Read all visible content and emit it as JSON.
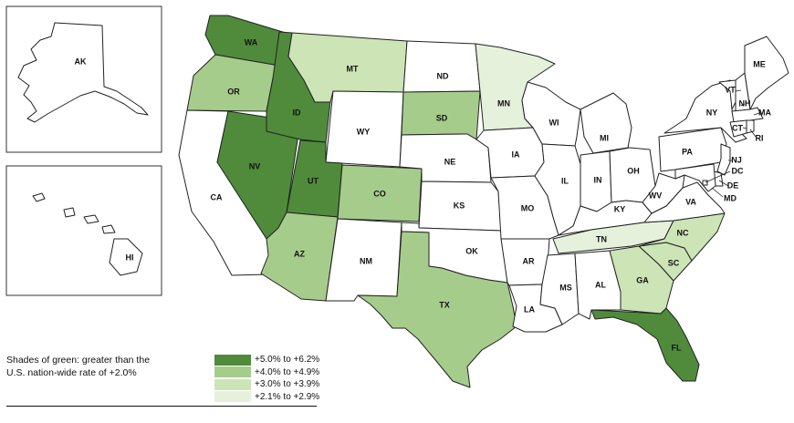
{
  "colors": {
    "tier1": "#4f8b3b",
    "tier2": "#a6cc8b",
    "tier3": "#cce4b6",
    "tier4": "#e6f1dc",
    "none": "#ffffff"
  },
  "states": {
    "AK": {
      "label": "AK",
      "tier": "none"
    },
    "HI": {
      "label": "HI",
      "tier": "none"
    },
    "WA": {
      "label": "WA",
      "tier": "tier1"
    },
    "OR": {
      "label": "OR",
      "tier": "tier2"
    },
    "CA": {
      "label": "CA",
      "tier": "none"
    },
    "ID": {
      "label": "ID",
      "tier": "tier1"
    },
    "NV": {
      "label": "NV",
      "tier": "tier1"
    },
    "UT": {
      "label": "UT",
      "tier": "tier1"
    },
    "AZ": {
      "label": "AZ",
      "tier": "tier2"
    },
    "MT": {
      "label": "MT",
      "tier": "tier3"
    },
    "WY": {
      "label": "WY",
      "tier": "none"
    },
    "CO": {
      "label": "CO",
      "tier": "tier2"
    },
    "NM": {
      "label": "NM",
      "tier": "none"
    },
    "ND": {
      "label": "ND",
      "tier": "none"
    },
    "SD": {
      "label": "SD",
      "tier": "tier2"
    },
    "NE": {
      "label": "NE",
      "tier": "none"
    },
    "KS": {
      "label": "KS",
      "tier": "none"
    },
    "OK": {
      "label": "OK",
      "tier": "none"
    },
    "TX": {
      "label": "TX",
      "tier": "tier2"
    },
    "MN": {
      "label": "MN",
      "tier": "tier4"
    },
    "IA": {
      "label": "IA",
      "tier": "none"
    },
    "MO": {
      "label": "MO",
      "tier": "none"
    },
    "AR": {
      "label": "AR",
      "tier": "none"
    },
    "LA": {
      "label": "LA",
      "tier": "none"
    },
    "WI": {
      "label": "WI",
      "tier": "none"
    },
    "IL": {
      "label": "IL",
      "tier": "none"
    },
    "MI": {
      "label": "MI",
      "tier": "none"
    },
    "IN": {
      "label": "IN",
      "tier": "none"
    },
    "OH": {
      "label": "OH",
      "tier": "none"
    },
    "KY": {
      "label": "KY",
      "tier": "none"
    },
    "TN": {
      "label": "TN",
      "tier": "tier4"
    },
    "MS": {
      "label": "MS",
      "tier": "none"
    },
    "AL": {
      "label": "AL",
      "tier": "none"
    },
    "GA": {
      "label": "GA",
      "tier": "tier3"
    },
    "FL": {
      "label": "FL",
      "tier": "tier1"
    },
    "SC": {
      "label": "SC",
      "tier": "tier3"
    },
    "NC": {
      "label": "NC",
      "tier": "tier3"
    },
    "VA": {
      "label": "VA",
      "tier": "none"
    },
    "WV": {
      "label": "WV",
      "tier": "none"
    },
    "PA": {
      "label": "PA",
      "tier": "none"
    },
    "NY": {
      "label": "NY",
      "tier": "none"
    },
    "VT": {
      "label": "VT",
      "tier": "none"
    },
    "NH": {
      "label": "NH",
      "tier": "none"
    },
    "ME": {
      "label": "ME",
      "tier": "none"
    },
    "MA": {
      "label": "MA",
      "tier": "none"
    },
    "CT": {
      "label": "CT",
      "tier": "none"
    },
    "RI": {
      "label": "RI",
      "tier": "none"
    },
    "NJ": {
      "label": "NJ",
      "tier": "none"
    },
    "DE": {
      "label": "DE",
      "tier": "none"
    },
    "MD": {
      "label": "MD",
      "tier": "none"
    },
    "DC": {
      "label": "DC",
      "tier": "none"
    }
  },
  "note": {
    "line1": "Shades of green: greater than the",
    "line2": "U.S. nation-wide rate of +2.0%"
  },
  "legend": [
    {
      "label": "+5.0% to +6.2%",
      "tier": "tier1"
    },
    {
      "label": "+4.0% to +4.9%",
      "tier": "tier2"
    },
    {
      "label": "+3.0% to +3.9%",
      "tier": "tier3"
    },
    {
      "label": "+2.1% to +2.9%",
      "tier": "tier4"
    }
  ]
}
